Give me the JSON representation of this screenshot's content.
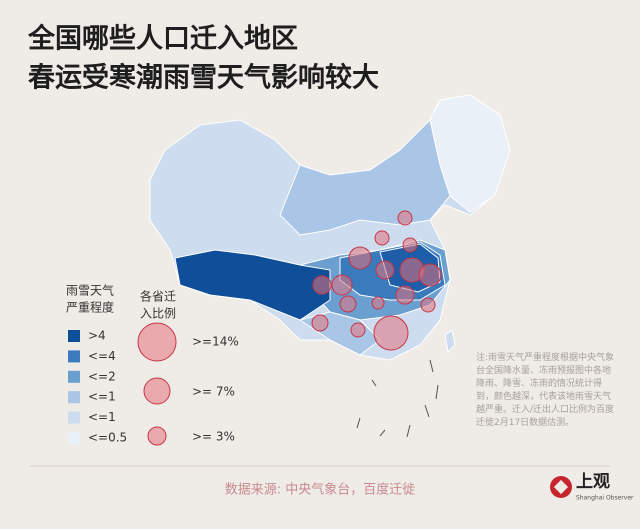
{
  "title": [
    "全国哪些人口迁入地区",
    "春运受寒潮雨雪天气影响较大"
  ],
  "legend": {
    "weather_title": [
      "雨雪天气",
      "严重程度"
    ],
    "weather_levels": [
      {
        "label": ">4",
        "color": "#0f4e98"
      },
      {
        "label": "<=4",
        "color": "#3a7bbd"
      },
      {
        "label": "<=2",
        "color": "#6b9fd0"
      },
      {
        "label": "<=1",
        "color": "#a9c6e6"
      },
      {
        "label": "<=1",
        "color": "#cddcef"
      },
      {
        "label": "<=0.5",
        "color": "#eaf0f8"
      }
    ],
    "migration_title": [
      "各省迁",
      "入比例"
    ],
    "migration_sizes": [
      ">=14%",
      ">= 7%",
      ">= 3%"
    ]
  },
  "note": "注:雨雪天气严重程度根据中央气象台全国降水量、冻雨预报图中各地降雨、降雪、冻雨的情况统计得到，颜色越深，代表该地雨雪天气越严重。迁入/迁出人口比例为百度迁徙2月17日数据估测。",
  "source": "数据来源: 中央气象台，百度迁徙",
  "logo": {
    "name": "上观",
    "subtitle": "Shanghai Observer"
  }
}
